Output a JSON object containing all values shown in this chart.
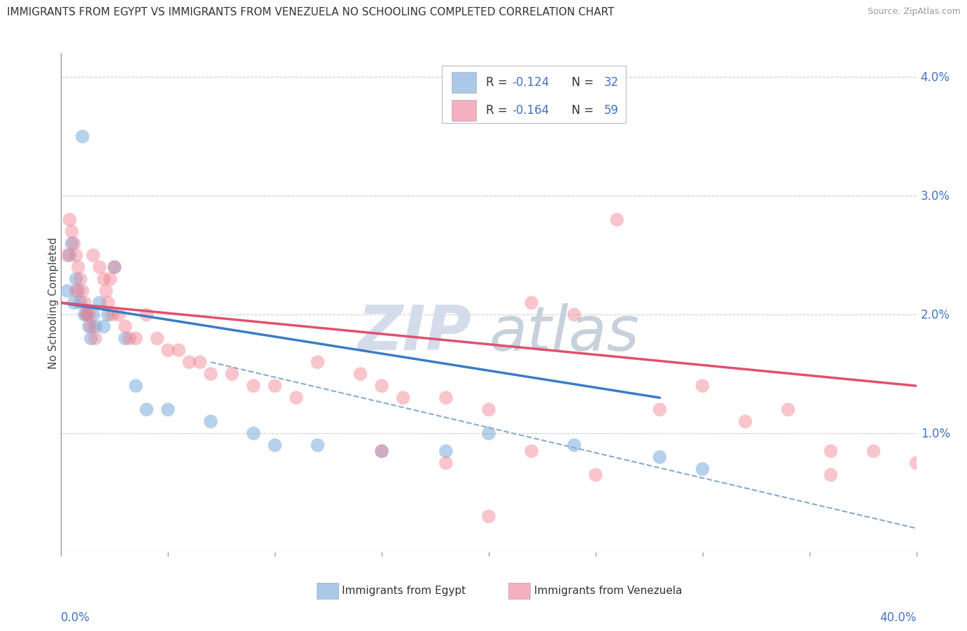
{
  "title": "IMMIGRANTS FROM EGYPT VS IMMIGRANTS FROM VENEZUELA NO SCHOOLING COMPLETED CORRELATION CHART",
  "source": "Source: ZipAtlas.com",
  "ylabel": "No Schooling Completed",
  "xlim": [
    0.0,
    0.4
  ],
  "ylim": [
    0.0,
    0.042
  ],
  "egypt_color": "#7aacdc",
  "venezuela_color": "#f08090",
  "egypt_line_color": "#3a7cc4",
  "venezuela_line_color": "#e05070",
  "dashed_line_color": "#88aacc",
  "egypt_R": -0.124,
  "egypt_N": 32,
  "venezuela_R": -0.164,
  "venezuela_N": 59,
  "watermark_zip": "ZIP",
  "watermark_atlas": "atlas",
  "grid_color": "#cccccc",
  "background_color": "#ffffff",
  "legend_color_egypt": "#aac8e8",
  "legend_color_venezuela": "#f4b0c0",
  "egypt_scatter_x": [
    0.003,
    0.004,
    0.005,
    0.006,
    0.007,
    0.008,
    0.009,
    0.01,
    0.011,
    0.012,
    0.013,
    0.014,
    0.015,
    0.016,
    0.018,
    0.02,
    0.022,
    0.025,
    0.03,
    0.035,
    0.04,
    0.05,
    0.07,
    0.09,
    0.1,
    0.12,
    0.15,
    0.18,
    0.2,
    0.24,
    0.28,
    0.3
  ],
  "egypt_scatter_y": [
    0.022,
    0.025,
    0.026,
    0.021,
    0.023,
    0.022,
    0.021,
    0.035,
    0.02,
    0.02,
    0.019,
    0.018,
    0.02,
    0.019,
    0.021,
    0.019,
    0.02,
    0.024,
    0.018,
    0.014,
    0.012,
    0.012,
    0.011,
    0.01,
    0.009,
    0.009,
    0.0085,
    0.0085,
    0.01,
    0.009,
    0.008,
    0.007
  ],
  "venezuela_scatter_x": [
    0.003,
    0.004,
    0.005,
    0.006,
    0.007,
    0.007,
    0.008,
    0.009,
    0.01,
    0.011,
    0.012,
    0.013,
    0.014,
    0.015,
    0.016,
    0.018,
    0.02,
    0.021,
    0.022,
    0.023,
    0.024,
    0.025,
    0.027,
    0.03,
    0.032,
    0.035,
    0.04,
    0.045,
    0.05,
    0.055,
    0.06,
    0.065,
    0.07,
    0.08,
    0.09,
    0.1,
    0.11,
    0.12,
    0.14,
    0.15,
    0.16,
    0.18,
    0.2,
    0.22,
    0.24,
    0.26,
    0.28,
    0.3,
    0.32,
    0.34,
    0.36,
    0.38,
    0.4,
    0.15,
    0.18,
    0.22,
    0.36,
    0.2,
    0.25
  ],
  "venezuela_scatter_y": [
    0.025,
    0.028,
    0.027,
    0.026,
    0.025,
    0.022,
    0.024,
    0.023,
    0.022,
    0.021,
    0.02,
    0.02,
    0.019,
    0.025,
    0.018,
    0.024,
    0.023,
    0.022,
    0.021,
    0.023,
    0.02,
    0.024,
    0.02,
    0.019,
    0.018,
    0.018,
    0.02,
    0.018,
    0.017,
    0.017,
    0.016,
    0.016,
    0.015,
    0.015,
    0.014,
    0.014,
    0.013,
    0.016,
    0.015,
    0.014,
    0.013,
    0.013,
    0.012,
    0.021,
    0.02,
    0.028,
    0.012,
    0.014,
    0.011,
    0.012,
    0.0085,
    0.0085,
    0.0075,
    0.0085,
    0.0075,
    0.0085,
    0.0065,
    0.003,
    0.0065
  ],
  "egypt_line_x": [
    0.0,
    0.28
  ],
  "egypt_line_y": [
    0.021,
    0.013
  ],
  "venezuela_line_x": [
    0.0,
    0.4
  ],
  "venezuela_line_y": [
    0.021,
    0.014
  ],
  "dashed_line_x": [
    0.07,
    0.4
  ],
  "dashed_line_y": [
    0.016,
    0.002
  ]
}
